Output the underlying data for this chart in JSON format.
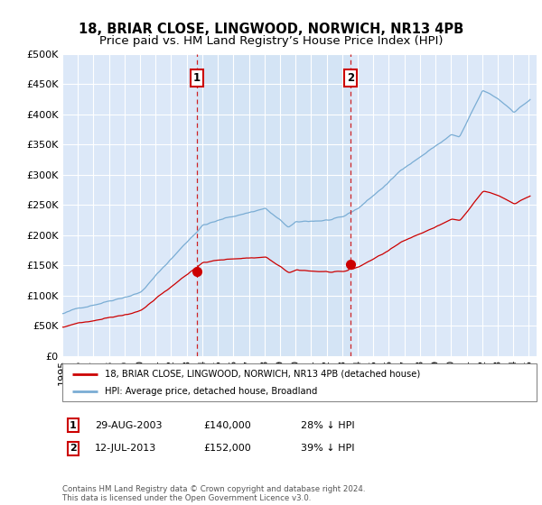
{
  "title": "18, BRIAR CLOSE, LINGWOOD, NORWICH, NR13 4PB",
  "subtitle": "Price paid vs. HM Land Registry’s House Price Index (HPI)",
  "ylim": [
    0,
    500000
  ],
  "yticks": [
    0,
    50000,
    100000,
    150000,
    200000,
    250000,
    300000,
    350000,
    400000,
    450000,
    500000
  ],
  "ytick_labels": [
    "£0",
    "£50K",
    "£100K",
    "£150K",
    "£200K",
    "£250K",
    "£300K",
    "£350K",
    "£400K",
    "£450K",
    "£500K"
  ],
  "background_color": "#ffffff",
  "plot_bg_color": "#dce8f8",
  "shade_color": "#ccdcf0",
  "grid_color": "#ffffff",
  "hpi_color": "#7aadd4",
  "price_color": "#cc0000",
  "sale1_date": 2003.67,
  "sale1_price": 140000,
  "sale1_label": "1",
  "sale2_date": 2013.54,
  "sale2_price": 152000,
  "sale2_label": "2",
  "legend_line1": "18, BRIAR CLOSE, LINGWOOD, NORWICH, NR13 4PB (detached house)",
  "legend_line2": "HPI: Average price, detached house, Broadland",
  "table_row1": [
    "1",
    "29-AUG-2003",
    "£140,000",
    "28% ↓ HPI"
  ],
  "table_row2": [
    "2",
    "12-JUL-2013",
    "£152,000",
    "39% ↓ HPI"
  ],
  "footnote": "Contains HM Land Registry data © Crown copyright and database right 2024.\nThis data is licensed under the Open Government Licence v3.0.",
  "title_fontsize": 10.5,
  "subtitle_fontsize": 9.5,
  "tick_fontsize": 8,
  "xmin": 1995,
  "xmax": 2025.5
}
